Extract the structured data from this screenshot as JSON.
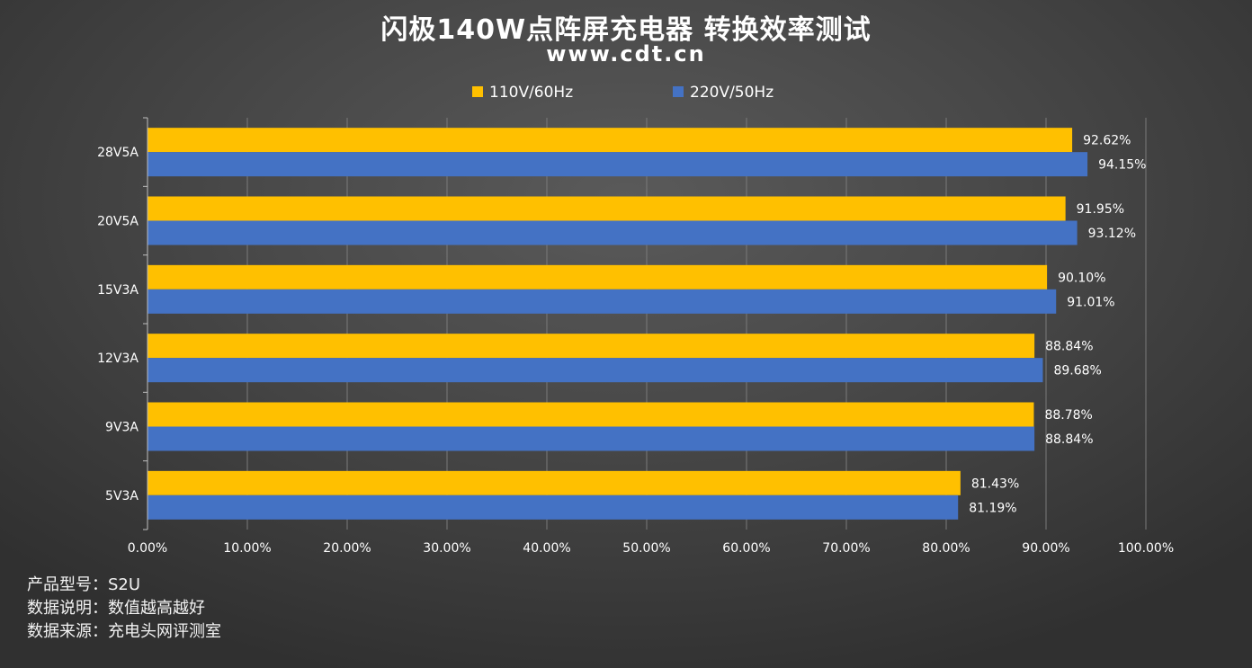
{
  "title": "闪极140W点阵屏充电器 转换效率测试",
  "subtitle": "www.cdt.cn",
  "colors": {
    "series_110": "#FFC000",
    "series_220": "#4472C4",
    "grid": "#7a7a7a",
    "axis": "#bfbfbf",
    "text": "#ffffff"
  },
  "notes": [
    "产品型号：S2U",
    "数据说明：数值越高越好",
    "数据来源：充电头网评测室"
  ],
  "chart_data": {
    "type": "bar",
    "orientation": "horizontal",
    "categories": [
      "28V5A",
      "20V5A",
      "15V3A",
      "12V3A",
      "9V3A",
      "5V3A"
    ],
    "series": [
      {
        "name": "110V/60Hz",
        "color": "#FFC000",
        "values": [
          92.62,
          91.95,
          90.1,
          88.84,
          88.78,
          81.43
        ],
        "labels": [
          "92.62%",
          "91.95%",
          "90.10%",
          "88.84%",
          "88.78%",
          "81.43%"
        ]
      },
      {
        "name": "220V/50Hz",
        "color": "#4472C4",
        "values": [
          94.15,
          93.12,
          91.01,
          89.68,
          88.84,
          81.19
        ],
        "labels": [
          "94.15%",
          "93.12%",
          "91.01%",
          "89.68%",
          "88.84%",
          "81.19%"
        ]
      }
    ],
    "xlim": [
      0,
      100
    ],
    "xticks": [
      0,
      10,
      20,
      30,
      40,
      50,
      60,
      70,
      80,
      90,
      100
    ],
    "xtick_labels": [
      "0.00%",
      "10.00%",
      "20.00%",
      "30.00%",
      "40.00%",
      "50.00%",
      "60.00%",
      "70.00%",
      "80.00%",
      "90.00%",
      "100.00%"
    ],
    "grid": "vertical",
    "legend": "top-center"
  }
}
